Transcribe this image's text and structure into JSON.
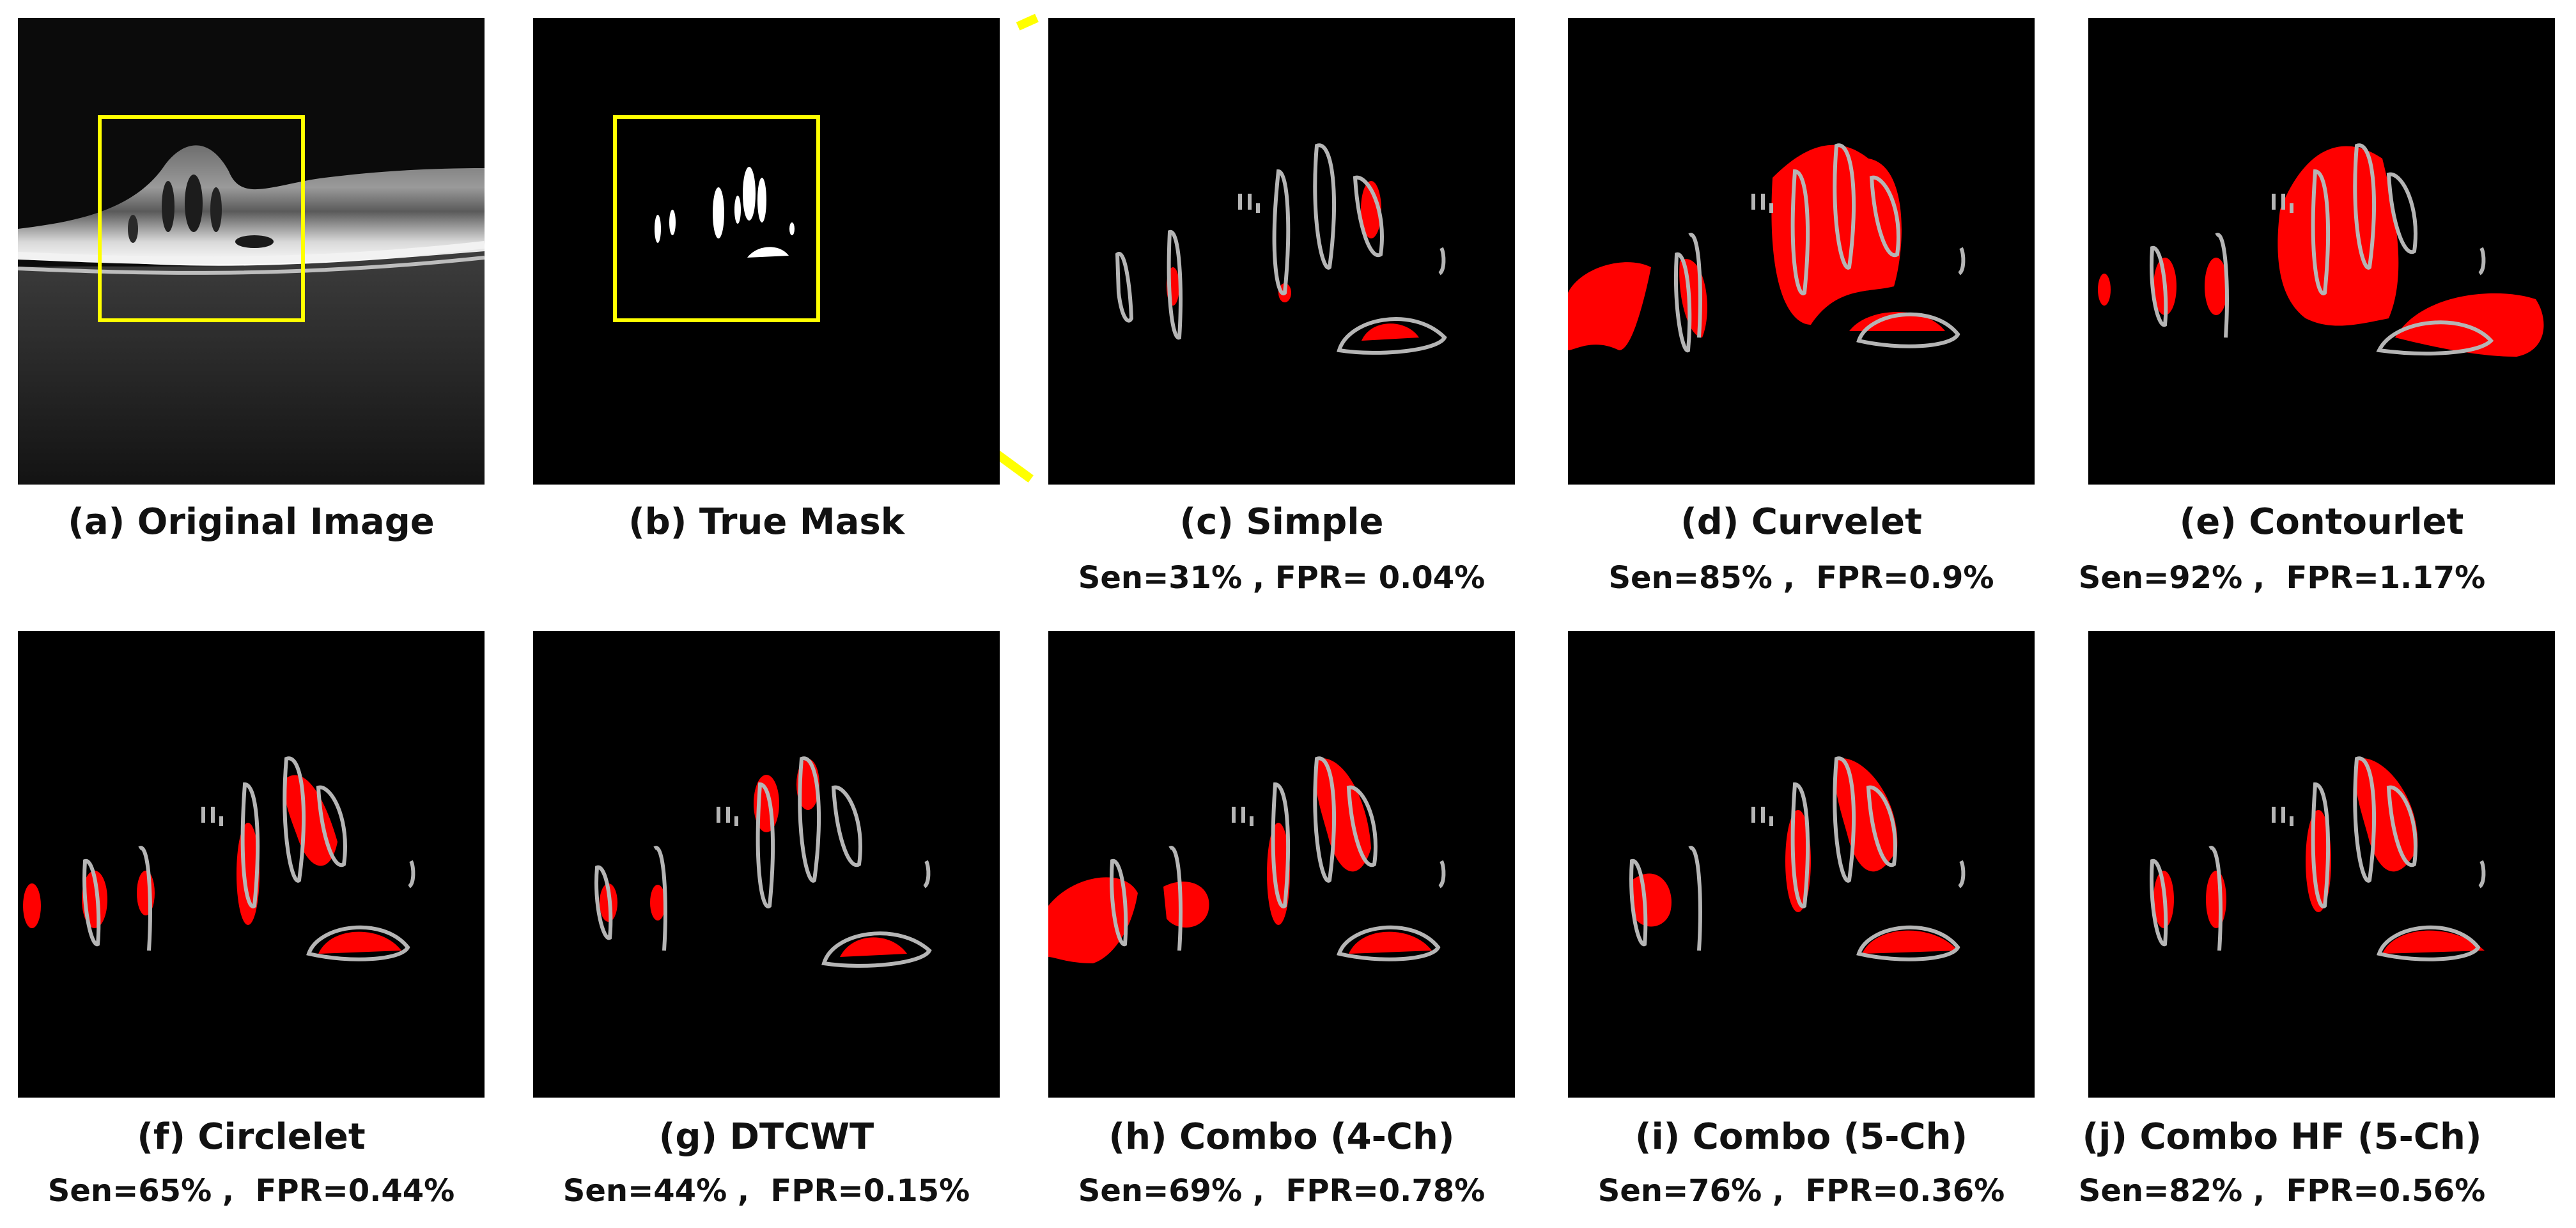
{
  "figure": {
    "panels": [
      {
        "id": "a",
        "caption": "(a) Original Image",
        "metric": ""
      },
      {
        "id": "b",
        "caption": "(b) True Mask",
        "metric": ""
      },
      {
        "id": "c",
        "caption": "(c) Simple",
        "metric": "Sen=31% , FPR= 0.04%"
      },
      {
        "id": "d",
        "caption": "(d) Curvelet",
        "metric": "Sen=85% ,  FPR=0.9%"
      },
      {
        "id": "e",
        "caption": "(e) Contourlet",
        "metric": "Sen=92% ,  FPR=1.17%"
      },
      {
        "id": "f",
        "caption": "(f) Circlelet",
        "metric": "Sen=65% ,  FPR=0.44%"
      },
      {
        "id": "g",
        "caption": "(g) DTCWT",
        "metric": "Sen=44% ,  FPR=0.15%"
      },
      {
        "id": "h",
        "caption": "(h) Combo (4-Ch)",
        "metric": "Sen=69% ,  FPR=0.78%"
      },
      {
        "id": "i",
        "caption": "(i) Combo (5-Ch)",
        "metric": "Sen=76% ,  FPR=0.36%"
      },
      {
        "id": "j",
        "caption": "(j) Combo HF (5-Ch)",
        "metric": "Sen=82% ,  FPR=0.56%"
      }
    ]
  },
  "colors": {
    "prediction": "#ff0000",
    "ground_truth_outline": "#b5b5b5",
    "roi_box": "#ffff00",
    "background": "#000000"
  }
}
